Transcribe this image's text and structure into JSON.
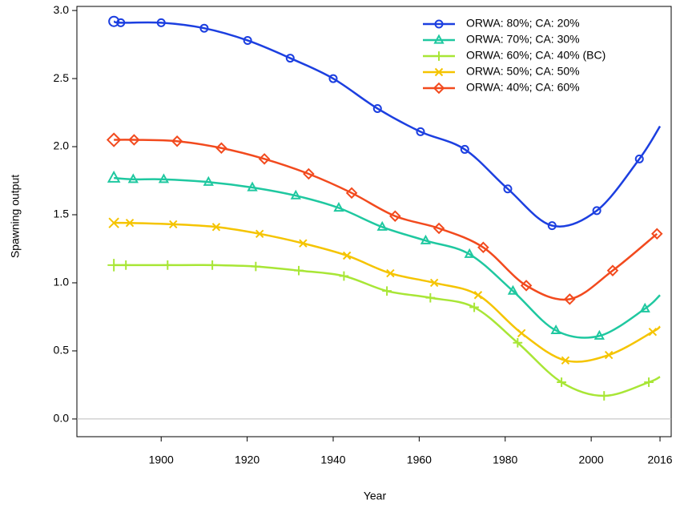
{
  "chart_data": {
    "type": "line",
    "xlabel": "Year",
    "ylabel": "Spawning output",
    "xlim": [
      1880.4,
      2018.6
    ],
    "ylim": [
      -0.13,
      3.03
    ],
    "xticks": [
      1900,
      1920,
      1940,
      1960,
      1980,
      2000,
      2016
    ],
    "yticks": [
      {
        "value": 0,
        "label": "0.0"
      },
      0.5,
      {
        "value": 1,
        "label": "1.0"
      },
      1.5,
      {
        "value": 2,
        "label": "2.0"
      },
      2.5,
      {
        "value": 3,
        "label": "3.0"
      }
    ],
    "legend": "upper right",
    "series": [
      {
        "name": "ORWA: 80%; CA: 20%",
        "color": "#1c3fe0",
        "marker": "circle",
        "x": [
          1889,
          1890.6,
          1900,
          1910,
          1920.1,
          1930,
          1940,
          1950.3,
          1960.3,
          1970.6,
          1980.6,
          1990.9,
          2001.3,
          2011.2,
          2016
        ],
        "values": [
          2.92,
          2.91,
          2.91,
          2.87,
          2.78,
          2.65,
          2.5,
          2.28,
          2.11,
          1.98,
          1.69,
          1.42,
          1.53,
          1.91,
          2.15
        ]
      },
      {
        "name": "ORWA: 70%; CA: 30%",
        "color": "#1fc8a0",
        "marker": "triangle",
        "x": [
          1889,
          1893.5,
          1900.6,
          1911,
          1921.2,
          1931.3,
          1941.3,
          1951.4,
          1961.5,
          1971.7,
          1981.8,
          1991.8,
          2001.9,
          2012.5,
          2016
        ],
        "values": [
          1.77,
          1.76,
          1.76,
          1.74,
          1.7,
          1.64,
          1.55,
          1.41,
          1.31,
          1.21,
          0.94,
          0.65,
          0.61,
          0.81,
          0.91
        ]
      },
      {
        "name": "ORWA: 60%; CA: 40% (BC)",
        "color": "#a8e636",
        "marker": "plus",
        "x": [
          1889,
          1891.8,
          1901.5,
          1911.9,
          1922,
          1932,
          1942.5,
          1952.5,
          1962.6,
          1972.8,
          1982.9,
          1993.1,
          2003,
          2013.4,
          2016
        ],
        "values": [
          1.13,
          1.13,
          1.13,
          1.13,
          1.12,
          1.09,
          1.05,
          0.94,
          0.89,
          0.82,
          0.56,
          0.27,
          0.17,
          0.27,
          0.31
        ]
      },
      {
        "name": "ORWA: 50%; CA: 50%",
        "color": "#f5c400",
        "marker": "x",
        "x": [
          1889,
          1892.7,
          1902.8,
          1912.8,
          1922.9,
          1933,
          1943.2,
          1953.3,
          1963.5,
          1973.7,
          1983.8,
          1994,
          2004.1,
          2014.3,
          2016
        ],
        "values": [
          1.44,
          1.44,
          1.43,
          1.41,
          1.36,
          1.29,
          1.2,
          1.07,
          1.0,
          0.91,
          0.63,
          0.43,
          0.47,
          0.64,
          0.68
        ]
      },
      {
        "name": "ORWA: 40%; CA: 60%",
        "color": "#f24a1e",
        "marker": "diamond",
        "x": [
          1889,
          1893.7,
          1903.7,
          1914,
          1924,
          1934.3,
          1944.3,
          1954.4,
          1964.6,
          1974.9,
          1984.9,
          1995,
          2005,
          2015.3
        ],
        "values": [
          2.05,
          2.05,
          2.04,
          1.99,
          1.91,
          1.8,
          1.66,
          1.49,
          1.4,
          1.26,
          0.98,
          0.88,
          1.09,
          1.36
        ]
      }
    ]
  }
}
